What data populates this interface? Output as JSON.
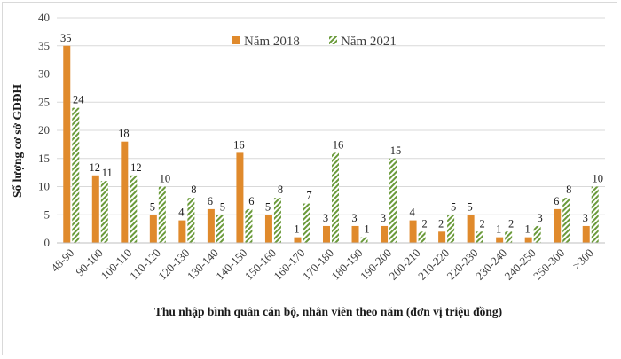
{
  "chart_data": {
    "type": "bar",
    "xlabel": "Thu nhập bình quân cán bộ, nhân viên theo năm (đơn vị triệu đồng)",
    "ylabel": "Số lượng cơ sở GDĐH",
    "ylim": [
      0,
      40
    ],
    "yticks": [
      0,
      5,
      10,
      15,
      20,
      25,
      30,
      35,
      40
    ],
    "grid": true,
    "legend_position": "top-center",
    "categories": [
      "48-90",
      "90-100",
      "100-110",
      "110-120",
      "120-130",
      "130-140",
      "140-150",
      "150-160",
      "160-170",
      "170-180",
      "180-190",
      "190-200",
      "200-210",
      "210-220",
      "220-230",
      "230-240",
      "240-250",
      "250-300",
      ">300"
    ],
    "series": [
      {
        "name": "Năm 2018",
        "color": "#e08a2c",
        "pattern": "solid",
        "values": [
          35,
          12,
          18,
          5,
          4,
          6,
          16,
          5,
          1,
          3,
          3,
          3,
          4,
          2,
          5,
          1,
          1,
          6,
          3
        ]
      },
      {
        "name": "Năm 2021",
        "color": "#6a9a3a",
        "pattern": "diagonal-hatch",
        "values": [
          24,
          11,
          12,
          10,
          8,
          5,
          6,
          8,
          7,
          16,
          1,
          15,
          2,
          5,
          2,
          2,
          3,
          8,
          10
        ]
      }
    ]
  }
}
